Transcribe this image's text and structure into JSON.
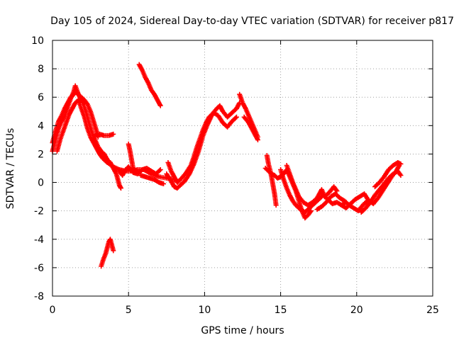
{
  "chart_data": {
    "type": "scatter",
    "title": "Day 105 of 2024, Sidereal Day-to-day VTEC variation (SDTVAR) for receiver p817",
    "xlabel": "GPS time / hours",
    "ylabel": "SDTVAR / TECUs",
    "xlim": [
      0,
      25
    ],
    "ylim": [
      -8,
      10
    ],
    "xticks": [
      "0",
      "5",
      "10",
      "15",
      "20",
      "25"
    ],
    "yticks": [
      "-8",
      "-6",
      "-4",
      "-2",
      "0",
      "2",
      "4",
      "6",
      "8",
      "10"
    ],
    "grid": true,
    "legend": "none",
    "marker": "plus",
    "color": "#ff0000",
    "series": [
      {
        "name": "SDTVAR",
        "segments": [
          [
            [
              0.0,
              2.2
            ],
            [
              0.2,
              3.0
            ],
            [
              0.4,
              3.8
            ],
            [
              0.6,
              4.3
            ],
            [
              0.8,
              4.7
            ],
            [
              1.0,
              5.3
            ],
            [
              1.2,
              5.9
            ],
            [
              1.4,
              6.4
            ],
            [
              1.5,
              6.8
            ],
            [
              1.7,
              6.2
            ],
            [
              1.9,
              6.0
            ],
            [
              2.1,
              5.8
            ],
            [
              2.3,
              5.5
            ],
            [
              2.5,
              5.0
            ],
            [
              2.7,
              4.3
            ],
            [
              2.9,
              3.6
            ],
            [
              3.0,
              3.2
            ]
          ],
          [
            [
              0.0,
              2.8
            ],
            [
              0.2,
              3.6
            ],
            [
              0.4,
              4.3
            ],
            [
              0.6,
              4.7
            ],
            [
              0.8,
              5.2
            ],
            [
              1.0,
              5.6
            ],
            [
              1.2,
              6.0
            ],
            [
              1.4,
              6.2
            ],
            [
              1.6,
              6.4
            ],
            [
              1.8,
              6.0
            ],
            [
              2.0,
              5.6
            ],
            [
              2.2,
              5.0
            ],
            [
              2.4,
              4.2
            ],
            [
              2.6,
              3.5
            ],
            [
              2.8,
              3.0
            ],
            [
              3.0,
              2.5
            ],
            [
              3.2,
              2.2
            ],
            [
              3.4,
              2.0
            ],
            [
              3.6,
              1.6
            ],
            [
              3.8,
              1.4
            ],
            [
              4.0,
              1.0
            ],
            [
              4.2,
              0.6
            ],
            [
              4.3,
              0.2
            ],
            [
              4.4,
              -0.2
            ],
            [
              4.5,
              -0.4
            ]
          ],
          [
            [
              0.3,
              2.2
            ],
            [
              0.5,
              3.0
            ],
            [
              0.7,
              3.6
            ],
            [
              0.9,
              4.2
            ],
            [
              1.1,
              4.8
            ],
            [
              1.3,
              5.2
            ],
            [
              1.5,
              5.6
            ],
            [
              1.7,
              5.8
            ],
            [
              1.9,
              5.2
            ],
            [
              2.1,
              4.6
            ],
            [
              2.3,
              3.8
            ],
            [
              2.5,
              3.2
            ],
            [
              2.7,
              2.8
            ],
            [
              2.9,
              2.4
            ],
            [
              3.1,
              2.0
            ],
            [
              3.3,
              1.7
            ],
            [
              3.6,
              1.4
            ],
            [
              4.0,
              1.1
            ],
            [
              4.4,
              0.9
            ],
            [
              4.8,
              0.8
            ],
            [
              5.2,
              0.8
            ],
            [
              5.6,
              0.9
            ],
            [
              6.0,
              0.9
            ],
            [
              6.5,
              0.6
            ],
            [
              7.0,
              0.4
            ],
            [
              7.5,
              0.3
            ],
            [
              8.0,
              0.2
            ]
          ],
          [
            [
              2.8,
              3.3
            ],
            [
              3.1,
              3.4
            ],
            [
              3.4,
              3.3
            ],
            [
              3.7,
              3.3
            ],
            [
              4.0,
              3.4
            ]
          ],
          [
            [
              5.0,
              2.7
            ],
            [
              5.1,
              2.2
            ],
            [
              5.2,
              1.6
            ],
            [
              5.3,
              1.0
            ],
            [
              5.5,
              0.8
            ]
          ],
          [
            [
              4.4,
              0.8
            ],
            [
              4.6,
              0.5
            ],
            [
              4.8,
              0.9
            ],
            [
              5.0,
              1.1
            ],
            [
              5.3,
              0.7
            ],
            [
              5.6,
              0.6
            ],
            [
              5.9,
              0.9
            ],
            [
              6.2,
              1.0
            ],
            [
              6.5,
              0.8
            ],
            [
              6.8,
              0.6
            ],
            [
              7.1,
              0.9
            ]
          ],
          [
            [
              5.8,
              0.5
            ],
            [
              6.1,
              0.4
            ],
            [
              6.4,
              0.3
            ],
            [
              6.7,
              0.2
            ],
            [
              7.0,
              0.0
            ],
            [
              7.3,
              -0.1
            ]
          ],
          [
            [
              5.7,
              8.3
            ],
            [
              5.9,
              7.9
            ],
            [
              6.1,
              7.4
            ],
            [
              6.3,
              7.0
            ],
            [
              6.5,
              6.5
            ],
            [
              6.7,
              6.2
            ],
            [
              6.9,
              5.8
            ],
            [
              7.1,
              5.4
            ]
          ],
          [
            [
              3.2,
              -5.9
            ],
            [
              3.35,
              -5.4
            ],
            [
              3.5,
              -5.0
            ],
            [
              3.6,
              -4.6
            ],
            [
              3.7,
              -4.2
            ],
            [
              3.8,
              -4.0
            ],
            [
              3.9,
              -4.4
            ],
            [
              4.0,
              -4.8
            ]
          ],
          [
            [
              7.5,
              0.6
            ],
            [
              7.8,
              0.1
            ],
            [
              8.0,
              -0.3
            ],
            [
              8.2,
              -0.4
            ],
            [
              8.4,
              -0.2
            ],
            [
              8.7,
              0.1
            ],
            [
              9.0,
              0.6
            ],
            [
              9.3,
              1.3
            ],
            [
              9.6,
              2.2
            ],
            [
              9.9,
              3.3
            ],
            [
              10.2,
              4.1
            ],
            [
              10.5,
              4.8
            ],
            [
              10.8,
              5.2
            ],
            [
              11.0,
              5.4
            ],
            [
              11.2,
              5.0
            ],
            [
              11.5,
              4.6
            ],
            [
              11.8,
              4.9
            ],
            [
              12.1,
              5.2
            ],
            [
              12.3,
              5.6
            ]
          ],
          [
            [
              7.6,
              1.4
            ],
            [
              7.8,
              0.8
            ],
            [
              8.0,
              0.4
            ],
            [
              8.2,
              0.0
            ],
            [
              8.5,
              0.3
            ],
            [
              8.8,
              0.7
            ],
            [
              9.1,
              1.2
            ],
            [
              9.3,
              1.8
            ],
            [
              9.5,
              2.5
            ],
            [
              9.7,
              3.1
            ],
            [
              9.9,
              3.7
            ],
            [
              10.1,
              4.2
            ],
            [
              10.3,
              4.6
            ],
            [
              10.6,
              4.9
            ],
            [
              10.9,
              4.7
            ],
            [
              11.2,
              4.2
            ],
            [
              11.5,
              3.9
            ],
            [
              11.8,
              4.3
            ],
            [
              12.1,
              4.6
            ]
          ],
          [
            [
              12.3,
              6.2
            ],
            [
              12.5,
              5.6
            ],
            [
              12.7,
              5.2
            ],
            [
              12.9,
              4.7
            ],
            [
              13.1,
              4.2
            ],
            [
              13.3,
              3.7
            ],
            [
              13.5,
              3.2
            ]
          ],
          [
            [
              12.6,
              4.6
            ],
            [
              12.9,
              4.2
            ],
            [
              13.2,
              3.6
            ],
            [
              13.5,
              3.0
            ]
          ],
          [
            [
              14.1,
              1.9
            ],
            [
              14.2,
              1.3
            ],
            [
              14.3,
              0.9
            ],
            [
              14.4,
              0.4
            ],
            [
              14.5,
              -0.2
            ],
            [
              14.6,
              -0.8
            ],
            [
              14.7,
              -1.6
            ]
          ],
          [
            [
              14.0,
              1.0
            ],
            [
              14.2,
              0.8
            ],
            [
              14.4,
              0.6
            ],
            [
              14.6,
              0.5
            ],
            [
              14.8,
              0.3
            ],
            [
              15.0,
              0.4
            ],
            [
              15.2,
              0.6
            ],
            [
              15.4,
              0.9
            ],
            [
              15.6,
              0.4
            ],
            [
              15.8,
              -0.1
            ],
            [
              16.0,
              -0.6
            ],
            [
              16.2,
              -1.3
            ],
            [
              16.4,
              -2.0
            ],
            [
              16.6,
              -2.5
            ],
            [
              16.8,
              -2.3
            ],
            [
              17.0,
              -2.0
            ]
          ],
          [
            [
              15.0,
              0.9
            ],
            [
              15.2,
              0.2
            ],
            [
              15.4,
              -0.4
            ],
            [
              15.6,
              -0.9
            ],
            [
              15.8,
              -1.3
            ],
            [
              16.0,
              -1.6
            ],
            [
              16.3,
              -1.9
            ],
            [
              16.6,
              -2.1
            ],
            [
              16.9,
              -1.8
            ],
            [
              17.2,
              -1.5
            ],
            [
              17.5,
              -1.2
            ],
            [
              17.8,
              -0.9
            ],
            [
              18.1,
              -1.2
            ],
            [
              18.4,
              -1.5
            ],
            [
              18.7,
              -1.4
            ],
            [
              19.0,
              -1.6
            ],
            [
              19.3,
              -1.4
            ]
          ],
          [
            [
              15.4,
              1.2
            ],
            [
              15.6,
              0.6
            ],
            [
              15.8,
              0.0
            ],
            [
              16.0,
              -0.5
            ],
            [
              16.2,
              -1.0
            ],
            [
              16.5,
              -1.4
            ],
            [
              16.8,
              -1.6
            ],
            [
              17.1,
              -1.4
            ],
            [
              17.4,
              -1.1
            ],
            [
              17.7,
              -0.5
            ],
            [
              17.9,
              -1.0
            ],
            [
              18.2,
              -0.7
            ],
            [
              18.5,
              -0.3
            ],
            [
              18.7,
              -0.6
            ]
          ],
          [
            [
              17.4,
              -1.9
            ],
            [
              17.7,
              -1.7
            ],
            [
              18.0,
              -1.4
            ],
            [
              18.3,
              -1.0
            ],
            [
              18.6,
              -0.8
            ],
            [
              18.9,
              -1.1
            ],
            [
              19.2,
              -1.3
            ],
            [
              19.5,
              -1.6
            ],
            [
              19.8,
              -1.8
            ],
            [
              20.1,
              -2.0
            ],
            [
              20.4,
              -1.6
            ],
            [
              20.7,
              -1.3
            ]
          ],
          [
            [
              19.0,
              -1.6
            ],
            [
              19.3,
              -1.8
            ],
            [
              19.6,
              -1.5
            ],
            [
              19.9,
              -1.2
            ],
            [
              20.2,
              -1.0
            ],
            [
              20.5,
              -0.8
            ],
            [
              20.8,
              -1.3
            ],
            [
              21.1,
              -1.5
            ],
            [
              21.4,
              -1.1
            ],
            [
              21.7,
              -0.6
            ],
            [
              22.0,
              -0.1
            ],
            [
              22.3,
              0.4
            ],
            [
              22.6,
              0.8
            ],
            [
              22.8,
              1.2
            ]
          ],
          [
            [
              20.3,
              -2.1
            ],
            [
              20.6,
              -1.8
            ],
            [
              20.9,
              -1.4
            ],
            [
              21.2,
              -0.9
            ],
            [
              21.5,
              -0.5
            ],
            [
              21.8,
              -0.1
            ],
            [
              22.1,
              0.3
            ],
            [
              22.4,
              0.6
            ],
            [
              22.7,
              0.8
            ],
            [
              22.9,
              0.5
            ]
          ],
          [
            [
              21.2,
              -0.3
            ],
            [
              21.5,
              0.0
            ],
            [
              21.8,
              0.4
            ],
            [
              22.1,
              0.9
            ],
            [
              22.4,
              1.2
            ],
            [
              22.7,
              1.4
            ],
            [
              22.9,
              1.3
            ]
          ]
        ]
      }
    ]
  }
}
